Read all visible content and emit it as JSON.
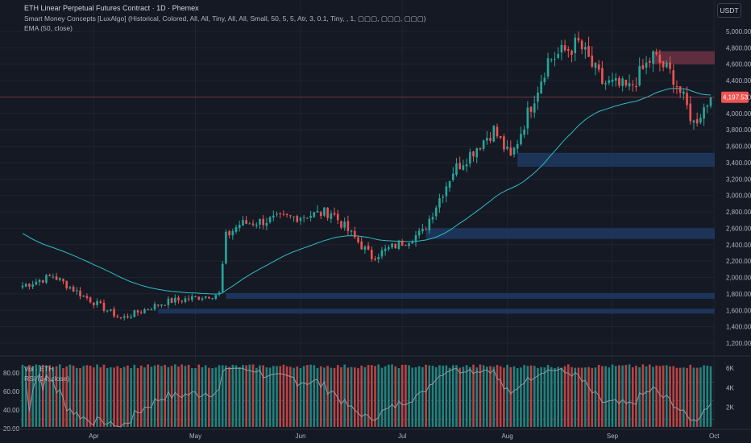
{
  "header": {
    "title": "ETH Linear Perpetual Futures Contract · 1D · Phemex",
    "indicator_smc": "Smart Money Concepts [LuxAlgo] (Historical, Colored, All, All, Tiny, All, All, Small, 50, 5, 5, Atr, 3, 0.1, Tiny, , 1, ▢▢▢, ▢▢▢, ▢▢▢)",
    "indicator_ema": "EMA (50, close)"
  },
  "currency_button": "USDT",
  "price_axis": {
    "ticks": [
      "5,000.00",
      "4,800.00",
      "4,600.00",
      "4,400.00",
      "4,200.00",
      "4,000.00",
      "3,800.00",
      "3,600.00",
      "3,400.00",
      "3,200.00",
      "3,000.00",
      "2,800.00",
      "2,600.00",
      "2,400.00",
      "2,200.00",
      "2,000.00",
      "1,800.00",
      "1,600.00",
      "1,400.00",
      "1,200.00"
    ],
    "current_price": "4,197.53"
  },
  "time_axis": {
    "labels": [
      "Apr",
      "May",
      "Jun",
      "Jul",
      "Aug",
      "Sep",
      "Oct"
    ]
  },
  "sub_pane": {
    "vol_label": "Vol · ETH",
    "rsi_label": "RSI (14, close)",
    "rsi_ticks": [
      "80.00",
      "60.00",
      "40.00",
      "20.00"
    ],
    "vol_ticks": [
      "6K",
      "4K",
      "2K"
    ]
  },
  "colors": {
    "up": "#26a69a",
    "down": "#ef5350",
    "ema": "#2dbdc6",
    "ob_bull": "#1e3a63",
    "ob_bear": "#6b3243",
    "rsi": "#9598a1"
  },
  "chart_data": {
    "type": "candlestick",
    "x_range": [
      "2025-03-11",
      "2025-09-30"
    ],
    "y_range": [
      1200,
      5000
    ],
    "ema_period": 50,
    "ohlc_anchors": [
      {
        "date": "2025-03-11",
        "close": 1900
      },
      {
        "date": "2025-03-20",
        "close": 2020
      },
      {
        "date": "2025-03-28",
        "close": 1800
      },
      {
        "date": "2025-04-09",
        "close": 1500
      },
      {
        "date": "2025-04-22",
        "close": 1700
      },
      {
        "date": "2025-05-08",
        "close": 1800
      },
      {
        "date": "2025-05-10",
        "close": 2500
      },
      {
        "date": "2025-05-14",
        "close": 2650
      },
      {
        "date": "2025-06-10",
        "close": 2800
      },
      {
        "date": "2025-06-22",
        "close": 2250
      },
      {
        "date": "2025-07-07",
        "close": 2550
      },
      {
        "date": "2025-07-16",
        "close": 3300
      },
      {
        "date": "2025-07-28",
        "close": 3800
      },
      {
        "date": "2025-08-02",
        "close": 3450
      },
      {
        "date": "2025-08-13",
        "close": 4650
      },
      {
        "date": "2025-08-22",
        "close": 4850
      },
      {
        "date": "2025-08-29",
        "close": 4380
      },
      {
        "date": "2025-09-06",
        "close": 4300
      },
      {
        "date": "2025-09-13",
        "close": 4700
      },
      {
        "date": "2025-09-19",
        "close": 4450
      },
      {
        "date": "2025-09-25",
        "close": 3880
      },
      {
        "date": "2025-09-30",
        "close": 4197.53
      }
    ],
    "order_blocks": [
      {
        "type": "bearish",
        "start": "2025-09-13",
        "end": "2025-09-30",
        "top": 4760,
        "bottom": 4600
      },
      {
        "type": "bullish",
        "start": "2025-08-04",
        "end": "2025-09-30",
        "top": 3520,
        "bottom": 3350
      },
      {
        "type": "bullish",
        "start": "2025-07-08",
        "end": "2025-09-30",
        "top": 2600,
        "bottom": 2470
      },
      {
        "type": "bullish",
        "start": "2025-05-10",
        "end": "2025-09-30",
        "top": 1810,
        "bottom": 1740
      },
      {
        "type": "bullish",
        "start": "2025-04-20",
        "end": "2025-09-30",
        "top": 1620,
        "bottom": 1560
      }
    ],
    "rsi_range": [
      20,
      80
    ],
    "volume_range": [
      0,
      7000
    ]
  }
}
